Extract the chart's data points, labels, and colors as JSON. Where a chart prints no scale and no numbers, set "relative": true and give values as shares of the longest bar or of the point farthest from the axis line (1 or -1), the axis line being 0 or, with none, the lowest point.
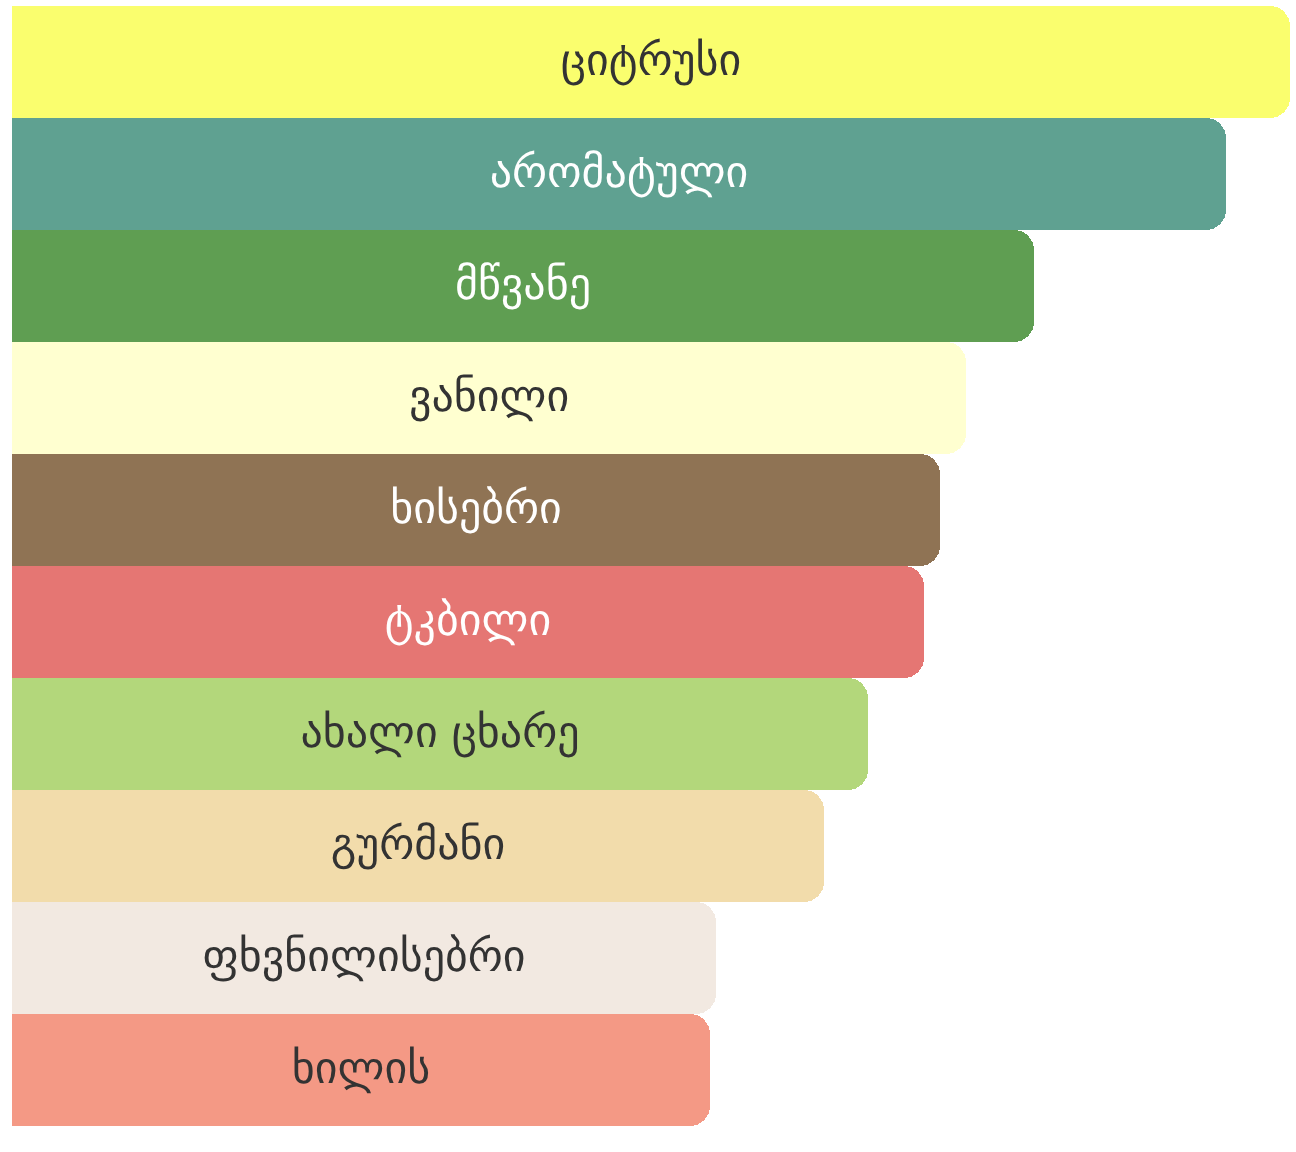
{
  "chart_data": {
    "type": "bar",
    "orientation": "horizontal",
    "relative": true,
    "categories": [
      "ციტრუსი",
      "არომატული",
      "მწვანე",
      "ვანილი",
      "ხისებრი",
      "ტკბილი",
      "ახალი ცხარე",
      "გურმანი",
      "ფხვნილისებრი",
      "ხილის"
    ],
    "values": [
      1,
      0.95,
      0.8,
      0.746,
      0.726,
      0.714,
      0.67,
      0.635,
      0.551,
      0.546
    ],
    "colors": [
      "#fafe6e",
      "#5fa191",
      "#5f9e52",
      "#ffffd0",
      "#8f7354",
      "#e57673",
      "#b3d77b",
      "#f2dcab",
      "#f2e9e1",
      "#f49985"
    ],
    "legend": false
  }
}
